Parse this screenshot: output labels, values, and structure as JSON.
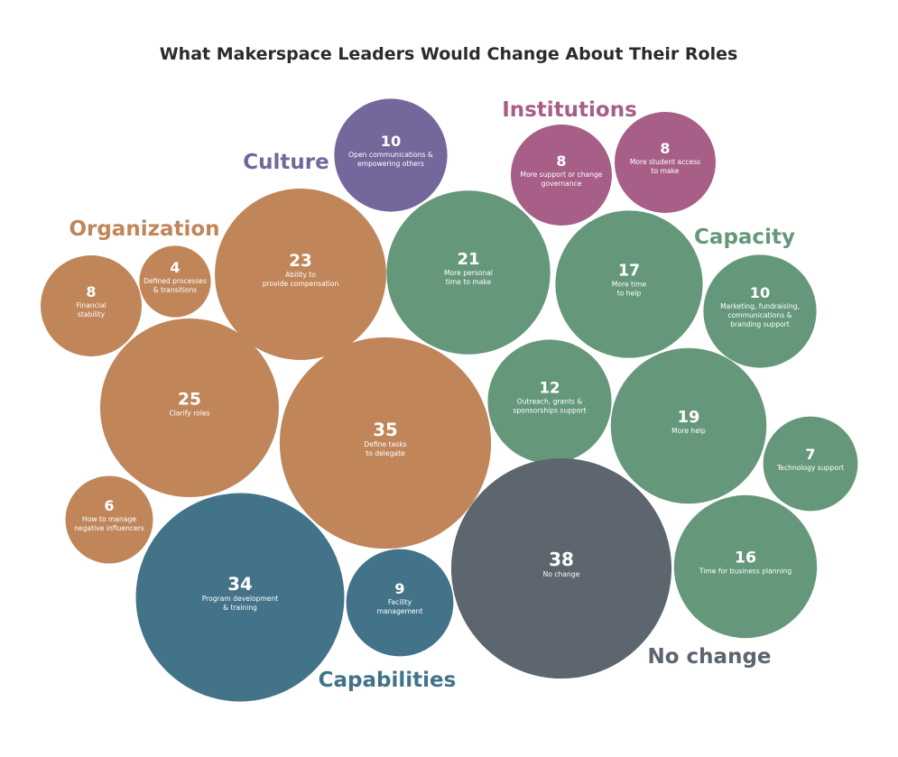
{
  "chart_data": {
    "type": "bubble",
    "title": "What Makerspace Leaders Would Change About Their Roles",
    "groups": [
      {
        "name": "Organization",
        "color": "#c0865a"
      },
      {
        "name": "Culture",
        "color": "#74679c"
      },
      {
        "name": "Institutions",
        "color": "#a75f87"
      },
      {
        "name": "Capacity",
        "color": "#65987a"
      },
      {
        "name": "Capabilities",
        "color": "#437389"
      },
      {
        "name": "No change",
        "color": "#5d656e"
      }
    ],
    "bubbles": [
      {
        "group": "Organization",
        "value": 8,
        "label": [
          "Financial",
          "stability"
        ]
      },
      {
        "group": "Organization",
        "value": 4,
        "label": [
          "Defined processes",
          "& transitions"
        ]
      },
      {
        "group": "Organization",
        "value": 23,
        "label": [
          "Ability to",
          "provide compensation"
        ]
      },
      {
        "group": "Organization",
        "value": 25,
        "label": [
          "Clarify roles"
        ]
      },
      {
        "group": "Organization",
        "value": 35,
        "label": [
          "Define tasks",
          "to delegate"
        ]
      },
      {
        "group": "Organization",
        "value": 6,
        "label": [
          "How to manage",
          "negative influencers"
        ]
      },
      {
        "group": "Culture",
        "value": 10,
        "label": [
          "Open communications &",
          "empowering others"
        ]
      },
      {
        "group": "Institutions",
        "value": 8,
        "label": [
          "More support or change",
          "governance"
        ]
      },
      {
        "group": "Institutions",
        "value": 8,
        "label": [
          "More student access",
          "to make"
        ]
      },
      {
        "group": "Capacity",
        "value": 21,
        "label": [
          "More personal",
          "time to make"
        ]
      },
      {
        "group": "Capacity",
        "value": 17,
        "label": [
          "More time",
          "to help"
        ]
      },
      {
        "group": "Capacity",
        "value": 10,
        "label": [
          "Marketing, fundraising,",
          "communications &",
          "branding support"
        ]
      },
      {
        "group": "Capacity",
        "value": 12,
        "label": [
          "Outreach, grants &",
          "sponsorships support"
        ]
      },
      {
        "group": "Capacity",
        "value": 19,
        "label": [
          "More help"
        ]
      },
      {
        "group": "Capacity",
        "value": 7,
        "label": [
          "Technology support"
        ]
      },
      {
        "group": "Capacity",
        "value": 16,
        "label": [
          "Time for business planning"
        ]
      },
      {
        "group": "Capabilities",
        "value": 34,
        "label": [
          "Program development",
          "& training"
        ]
      },
      {
        "group": "Capabilities",
        "value": 9,
        "label": [
          "Facility",
          "management"
        ]
      },
      {
        "group": "No change",
        "value": 38,
        "label": [
          "No change"
        ]
      }
    ]
  }
}
